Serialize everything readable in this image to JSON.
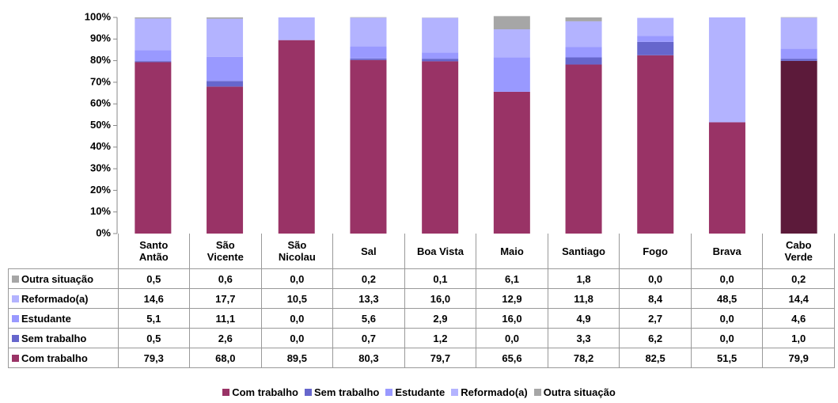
{
  "chart_data": {
    "type": "stacked_bar",
    "categories": [
      "Santo Antão",
      "São Vicente",
      "São Nicolau",
      "Sal",
      "Boa Vista",
      "Maio",
      "Santiago",
      "Fogo",
      "Brava",
      "Cabo Verde"
    ],
    "series": [
      {
        "name": "Com trabalho",
        "color": "#993366",
        "colors": [
          "#993366",
          "#993366",
          "#993366",
          "#993366",
          "#993366",
          "#993366",
          "#993366",
          "#993366",
          "#993366",
          "#5c1a3a"
        ],
        "values": [
          79.3,
          68.0,
          89.5,
          80.3,
          79.7,
          65.6,
          78.2,
          82.5,
          51.5,
          79.9
        ],
        "value_labels": [
          "79,3",
          "68,0",
          "89,5",
          "80,3",
          "79,7",
          "65,6",
          "78,2",
          "82,5",
          "51,5",
          "79,9"
        ]
      },
      {
        "name": "Sem trabalho",
        "color": "#6666cc",
        "values": [
          0.5,
          2.6,
          0.0,
          0.7,
          1.2,
          0.0,
          3.3,
          6.2,
          0.0,
          1.0
        ],
        "value_labels": [
          "0,5",
          "2,6",
          "0,0",
          "0,7",
          "1,2",
          "0,0",
          "3,3",
          "6,2",
          "0,0",
          "1,0"
        ]
      },
      {
        "name": "Estudante",
        "color": "#9999ff",
        "values": [
          5.1,
          11.1,
          0.0,
          5.6,
          2.9,
          16.0,
          4.9,
          2.7,
          0.0,
          4.6
        ],
        "value_labels": [
          "5,1",
          "11,1",
          "0,0",
          "5,6",
          "2,9",
          "16,0",
          "4,9",
          "2,7",
          "0,0",
          "4,6"
        ]
      },
      {
        "name": "Reformado(a)",
        "color": "#b3b3ff",
        "values": [
          14.6,
          17.7,
          10.5,
          13.3,
          16.0,
          12.9,
          11.8,
          8.4,
          48.5,
          14.4
        ],
        "value_labels": [
          "14,6",
          "17,7",
          "10,5",
          "13,3",
          "16,0",
          "12,9",
          "11,8",
          "8,4",
          "48,5",
          "14,4"
        ]
      },
      {
        "name": "Outra situação",
        "color": "#a6a6a6",
        "values": [
          0.5,
          0.6,
          0.0,
          0.2,
          0.1,
          6.1,
          1.8,
          0.0,
          0.0,
          0.2
        ],
        "value_labels": [
          "0,5",
          "0,6",
          "0,0",
          "0,2",
          "0,1",
          "6,1",
          "1,8",
          "0,0",
          "0,0",
          "0,2"
        ]
      }
    ],
    "ylim": [
      0,
      100
    ],
    "yticks": [
      {
        "value": 0,
        "label": "0%"
      },
      {
        "value": 10,
        "label": "10%"
      },
      {
        "value": 20,
        "label": "20%"
      },
      {
        "value": 30,
        "label": "30%"
      },
      {
        "value": 40,
        "label": "40%"
      },
      {
        "value": 50,
        "label": "50%"
      },
      {
        "value": 60,
        "label": "60%"
      },
      {
        "value": 70,
        "label": "70%"
      },
      {
        "value": 80,
        "label": "80%"
      },
      {
        "value": 90,
        "label": "90%"
      },
      {
        "value": 100,
        "label": "100%"
      }
    ],
    "grid": false,
    "legend": "bottom"
  }
}
